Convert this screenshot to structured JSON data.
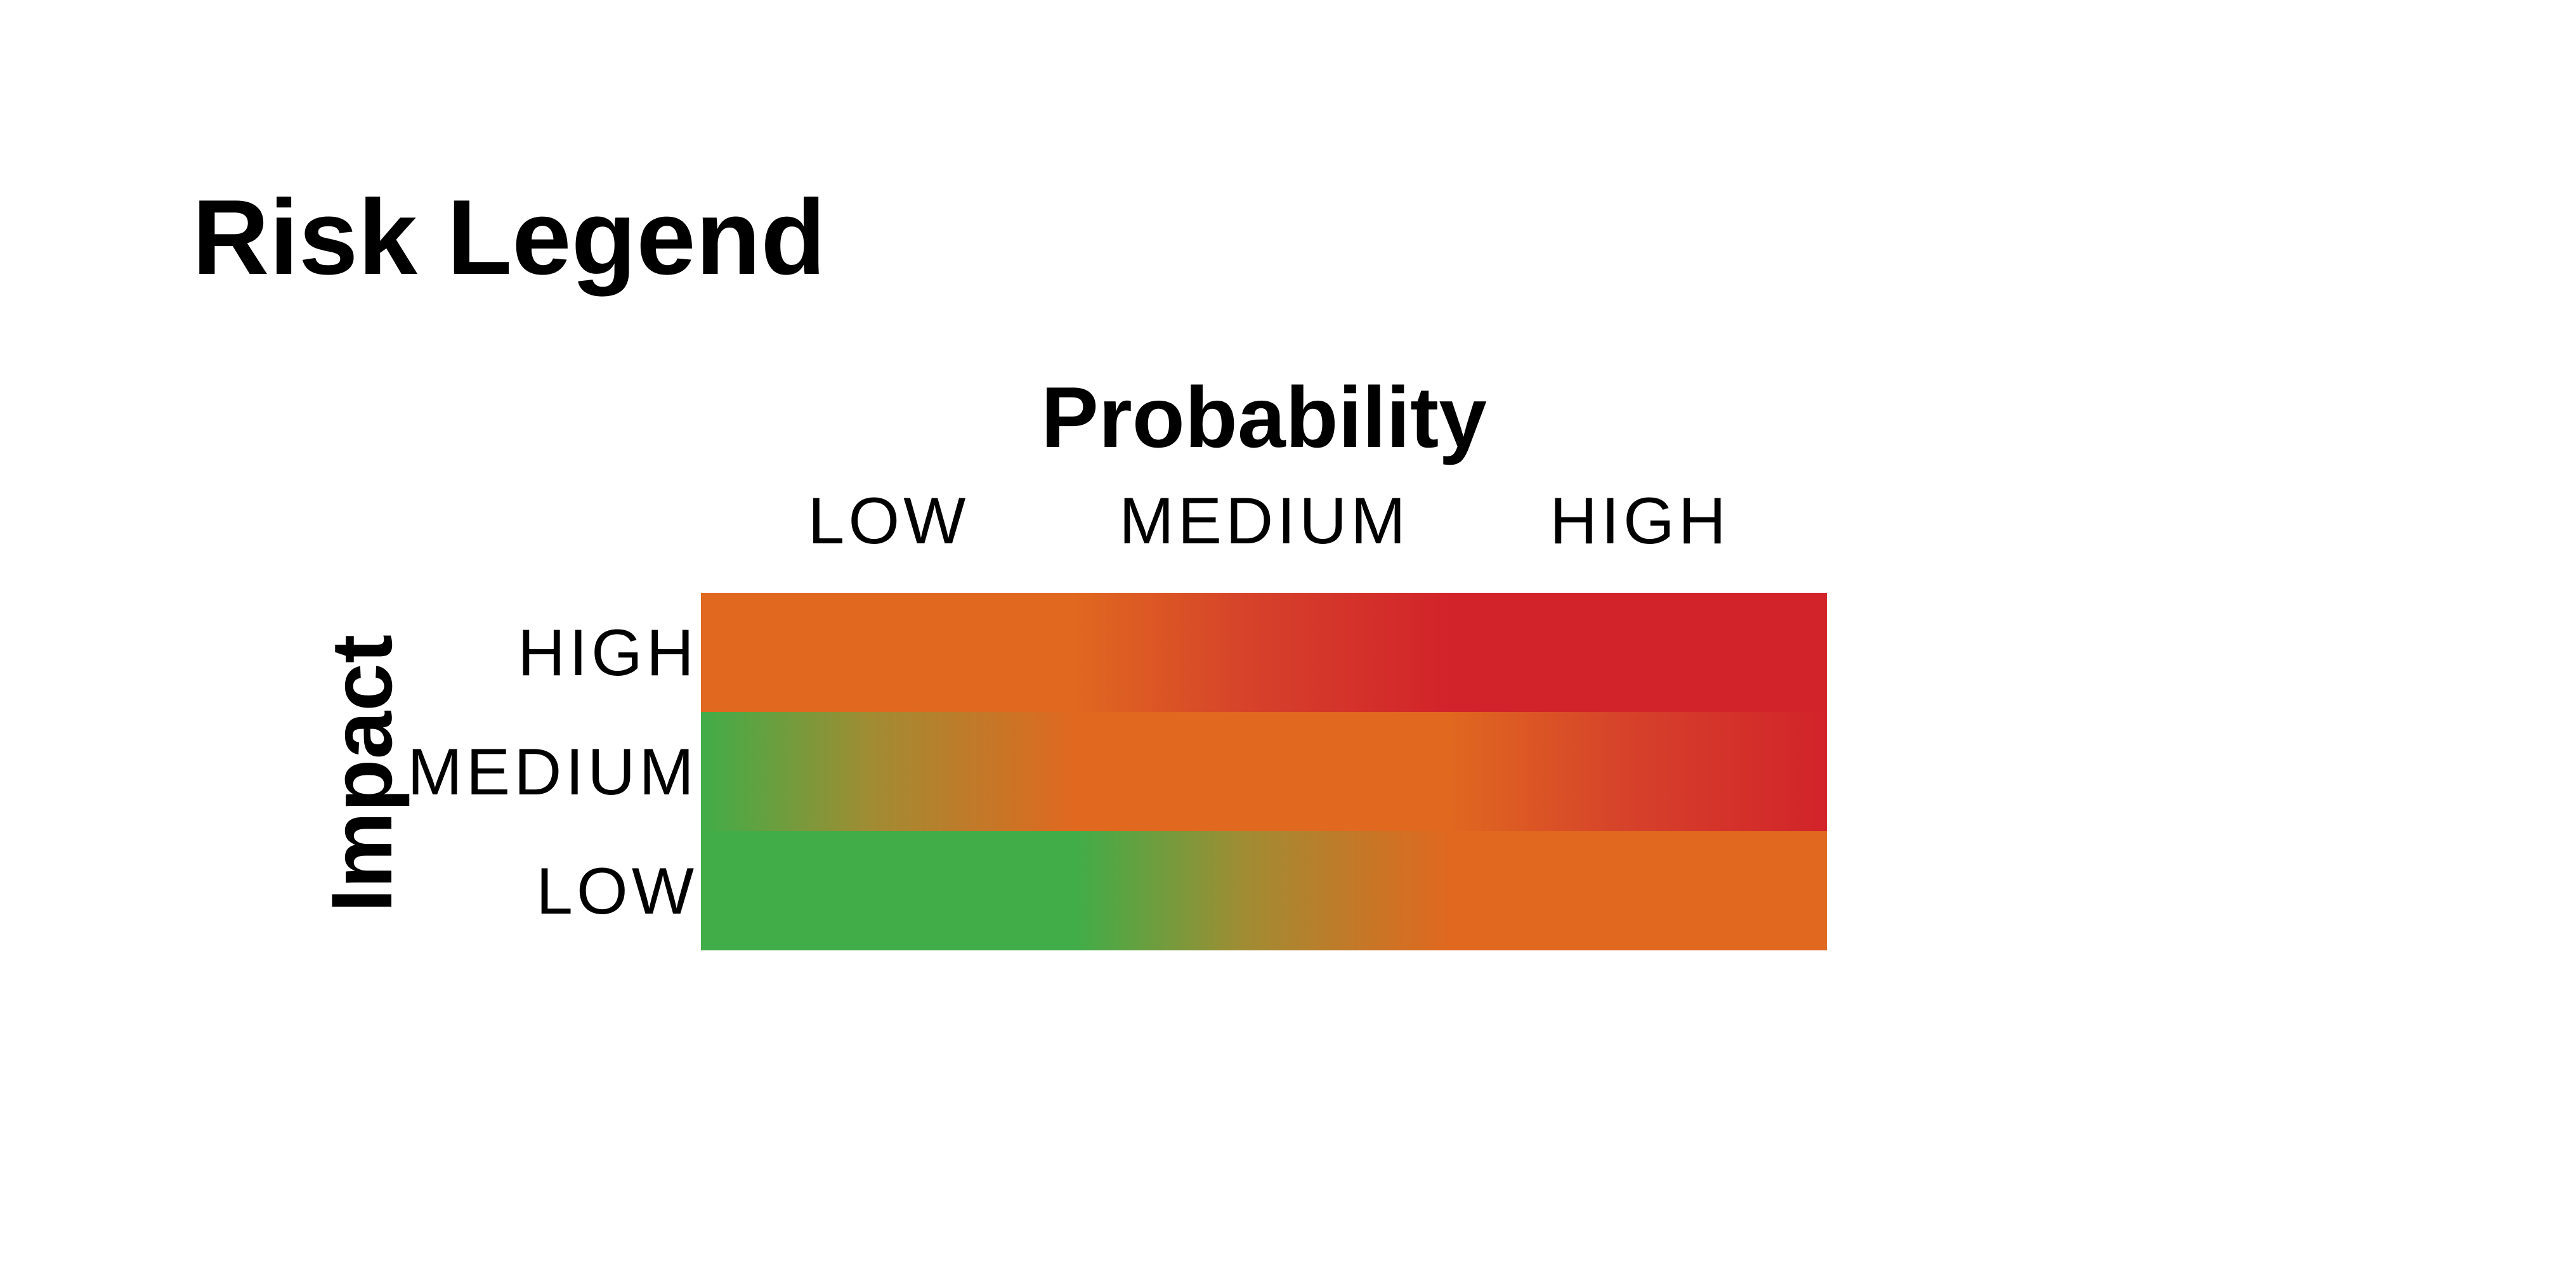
{
  "title": "Risk Legend",
  "x_axis": {
    "title": "Probability",
    "columns": [
      "LOW",
      "MEDIUM",
      "HIGH"
    ]
  },
  "y_axis": {
    "title": "Impact",
    "rows": [
      "HIGH",
      "MEDIUM",
      "LOW"
    ]
  },
  "colors": {
    "green": "#40ad48",
    "orange": "#e0681f",
    "red": "#d2232a"
  }
}
